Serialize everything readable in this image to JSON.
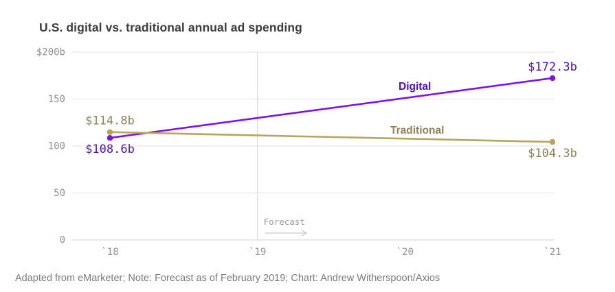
{
  "title": "U.S. digital vs. traditional annual ad spending",
  "source_note": "Adapted from eMarketer; Note: Forecast as of February 2019; Chart: Andrew Witherspoon/Axios",
  "chart_data": {
    "type": "line",
    "title": "U.S. digital vs. traditional annual ad spending",
    "x_tick_labels": [
      "`18",
      "`19",
      "`20",
      "`21"
    ],
    "y_axis": {
      "min": 0,
      "max": 200,
      "ticks": [
        {
          "value": 200,
          "label": "$200b"
        },
        {
          "value": 150,
          "label": "150"
        },
        {
          "value": 100,
          "label": "100"
        },
        {
          "value": 50,
          "label": "50"
        },
        {
          "value": 0,
          "label": "0"
        }
      ]
    },
    "grid": "horizontal",
    "legend": "inline-series-labels",
    "forecast_annotation": {
      "label": "Forecast",
      "starts_at_tick": "`19"
    },
    "series": [
      {
        "name": "Digital",
        "line_color": "#7f10ec",
        "label_color": "#4f0bd0",
        "points": [
          {
            "x": "`18",
            "value": 108.6,
            "label": "$108.6b",
            "label_position": "below"
          },
          {
            "x": "`21",
            "value": 172.3,
            "label": "$172.3b",
            "label_position": "above"
          }
        ]
      },
      {
        "name": "Traditional",
        "line_color": "#b8a45a",
        "label_color": "#8e8355",
        "points": [
          {
            "x": "`18",
            "value": 114.8,
            "label": "$114.8b",
            "label_position": "above"
          },
          {
            "x": "`21",
            "value": 104.3,
            "label": "$104.3b",
            "label_position": "below"
          }
        ]
      }
    ]
  }
}
